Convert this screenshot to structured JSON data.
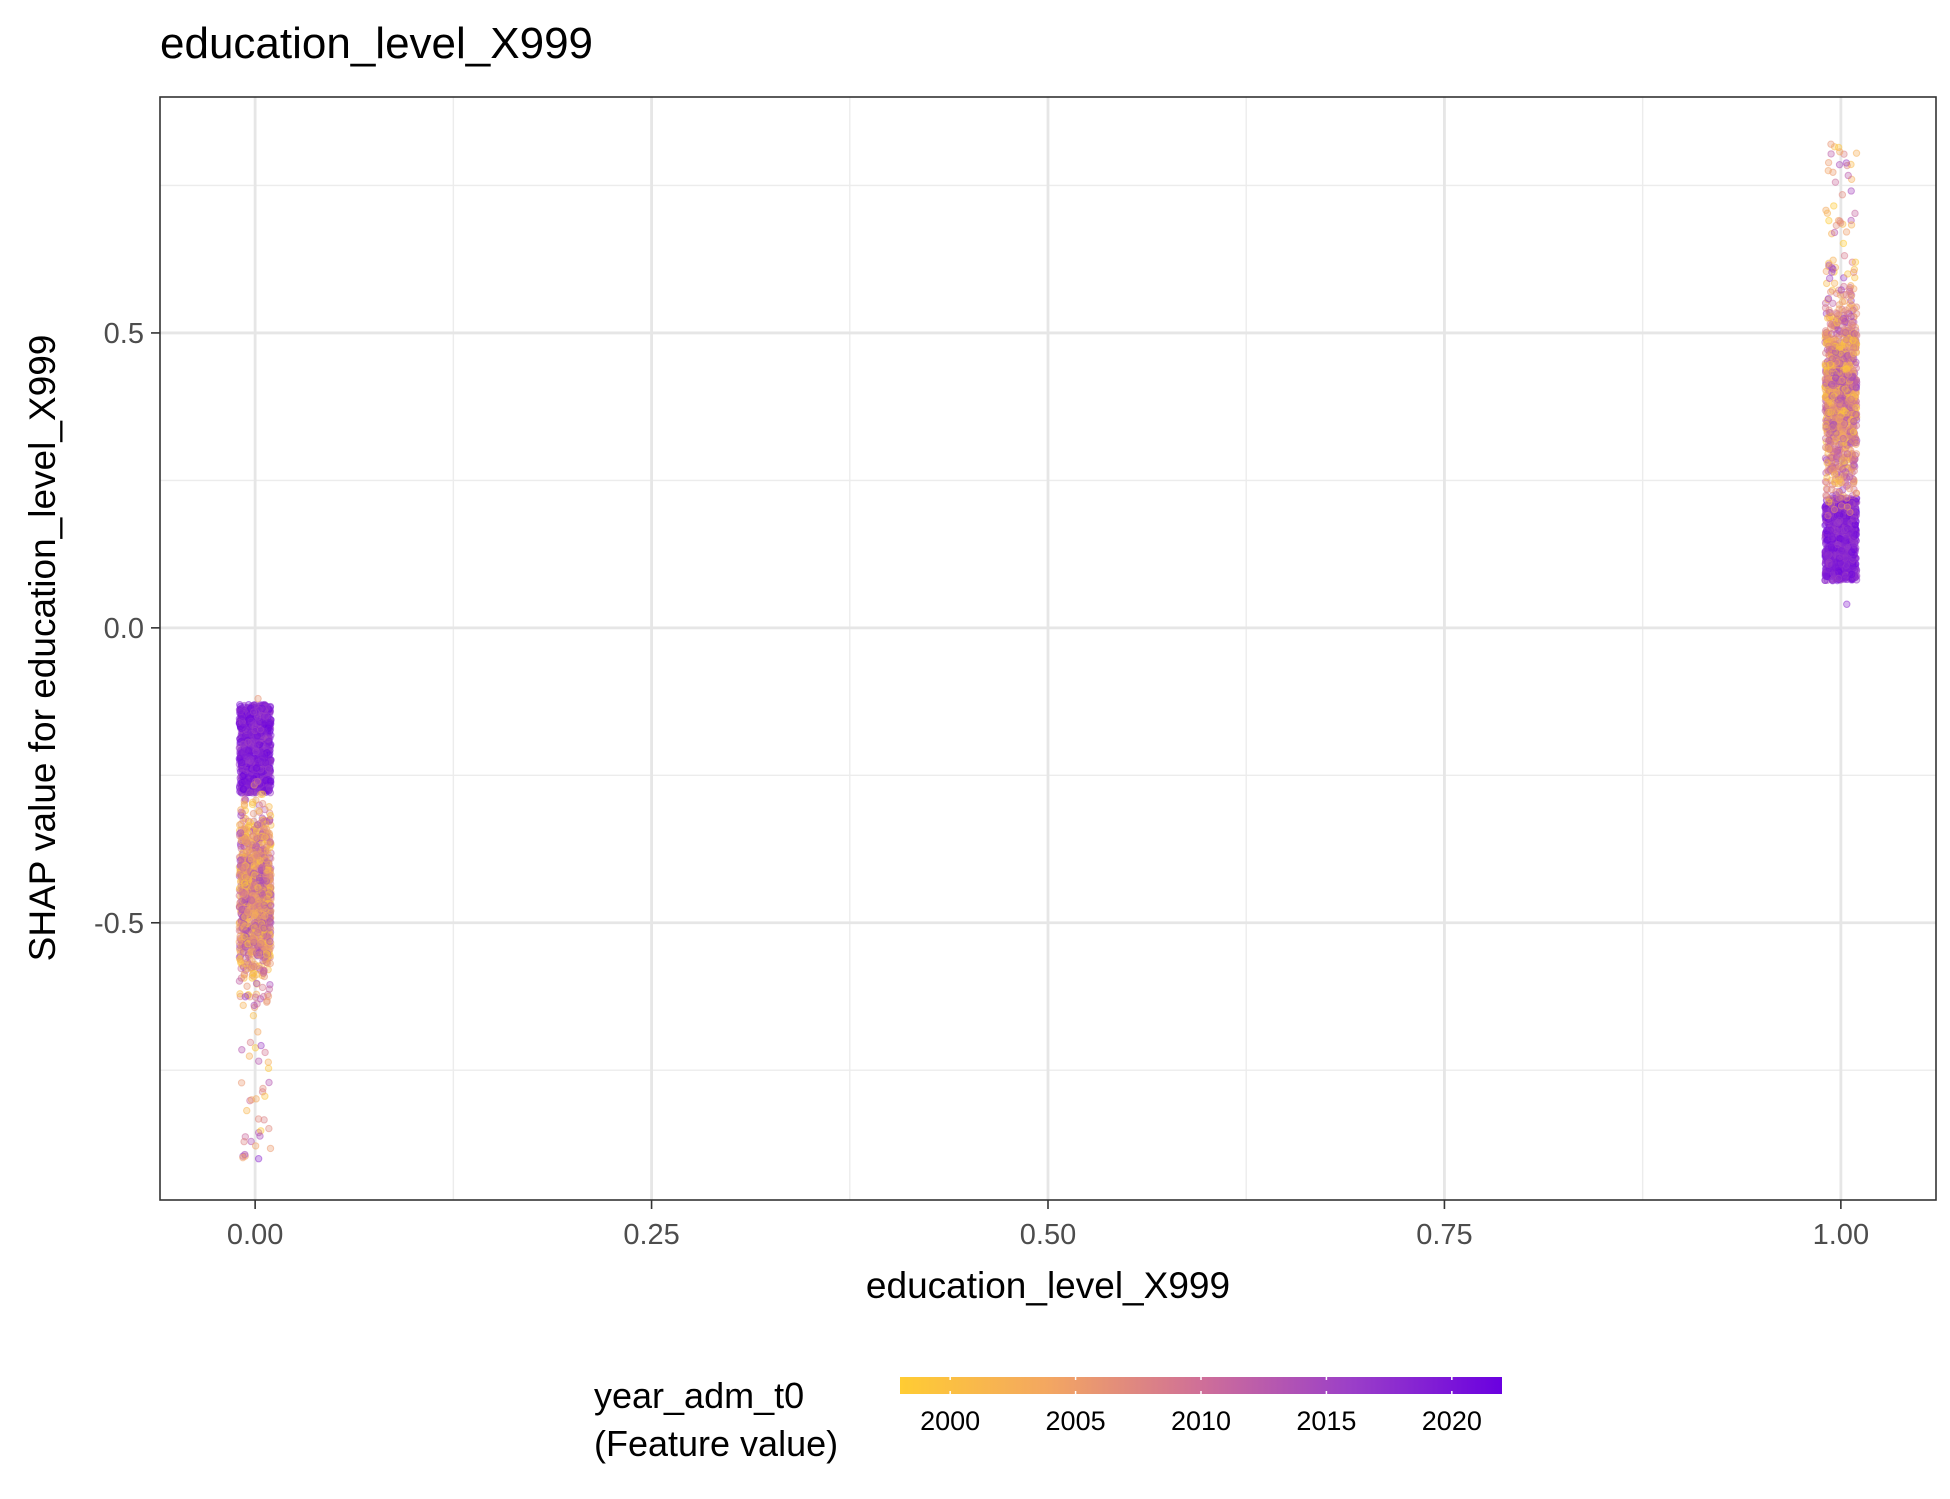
{
  "chart_data": {
    "type": "scatter",
    "title": "education_level_X999",
    "xlabel": "education_level_X999",
    "ylabel": "SHAP value for education_level_X999",
    "xlim": [
      -0.06,
      1.06
    ],
    "ylim": [
      -0.97,
      0.9
    ],
    "x_ticks": [
      0.0,
      0.25,
      0.5,
      0.75,
      1.0
    ],
    "x_tick_labels": [
      "0.00",
      "0.25",
      "0.50",
      "0.75",
      "1.00"
    ],
    "y_ticks": [
      -0.5,
      0.0,
      0.5
    ],
    "y_tick_labels": [
      "-0.5",
      "0.0",
      "0.5"
    ],
    "grid": true,
    "point_alpha": 0.35,
    "legend": {
      "title_line1": "year_adm_t0",
      "title_line2": "(Feature value)",
      "placement": "bottom",
      "range": [
        1998,
        2022
      ],
      "ticks": [
        2000,
        2005,
        2010,
        2015,
        2020
      ],
      "tick_labels": [
        "2000",
        "2005",
        "2010",
        "2015",
        "2020"
      ],
      "colors": [
        "#ffcc33",
        "#f3a662",
        "#cf6f98",
        "#9b3fc8",
        "#6a00e0"
      ]
    },
    "clusters": [
      {
        "x": 0.0,
        "y_min": -0.9,
        "y_max": -0.12,
        "dense_recent_range": [
          -0.28,
          -0.13
        ],
        "dense_mixed_range": [
          -0.6,
          -0.3
        ],
        "recent_year_range": [
          2015,
          2022
        ],
        "mixed_year_range": [
          1998,
          2016
        ],
        "outlier_range": [
          -0.9,
          -0.6
        ]
      },
      {
        "x": 1.0,
        "y_min": 0.04,
        "y_max": 0.82,
        "dense_recent_range": [
          0.08,
          0.22
        ],
        "dense_mixed_range": [
          0.22,
          0.58
        ],
        "recent_year_range": [
          2015,
          2022
        ],
        "mixed_year_range": [
          1998,
          2016
        ],
        "outlier_range": [
          0.6,
          0.82
        ]
      }
    ]
  }
}
